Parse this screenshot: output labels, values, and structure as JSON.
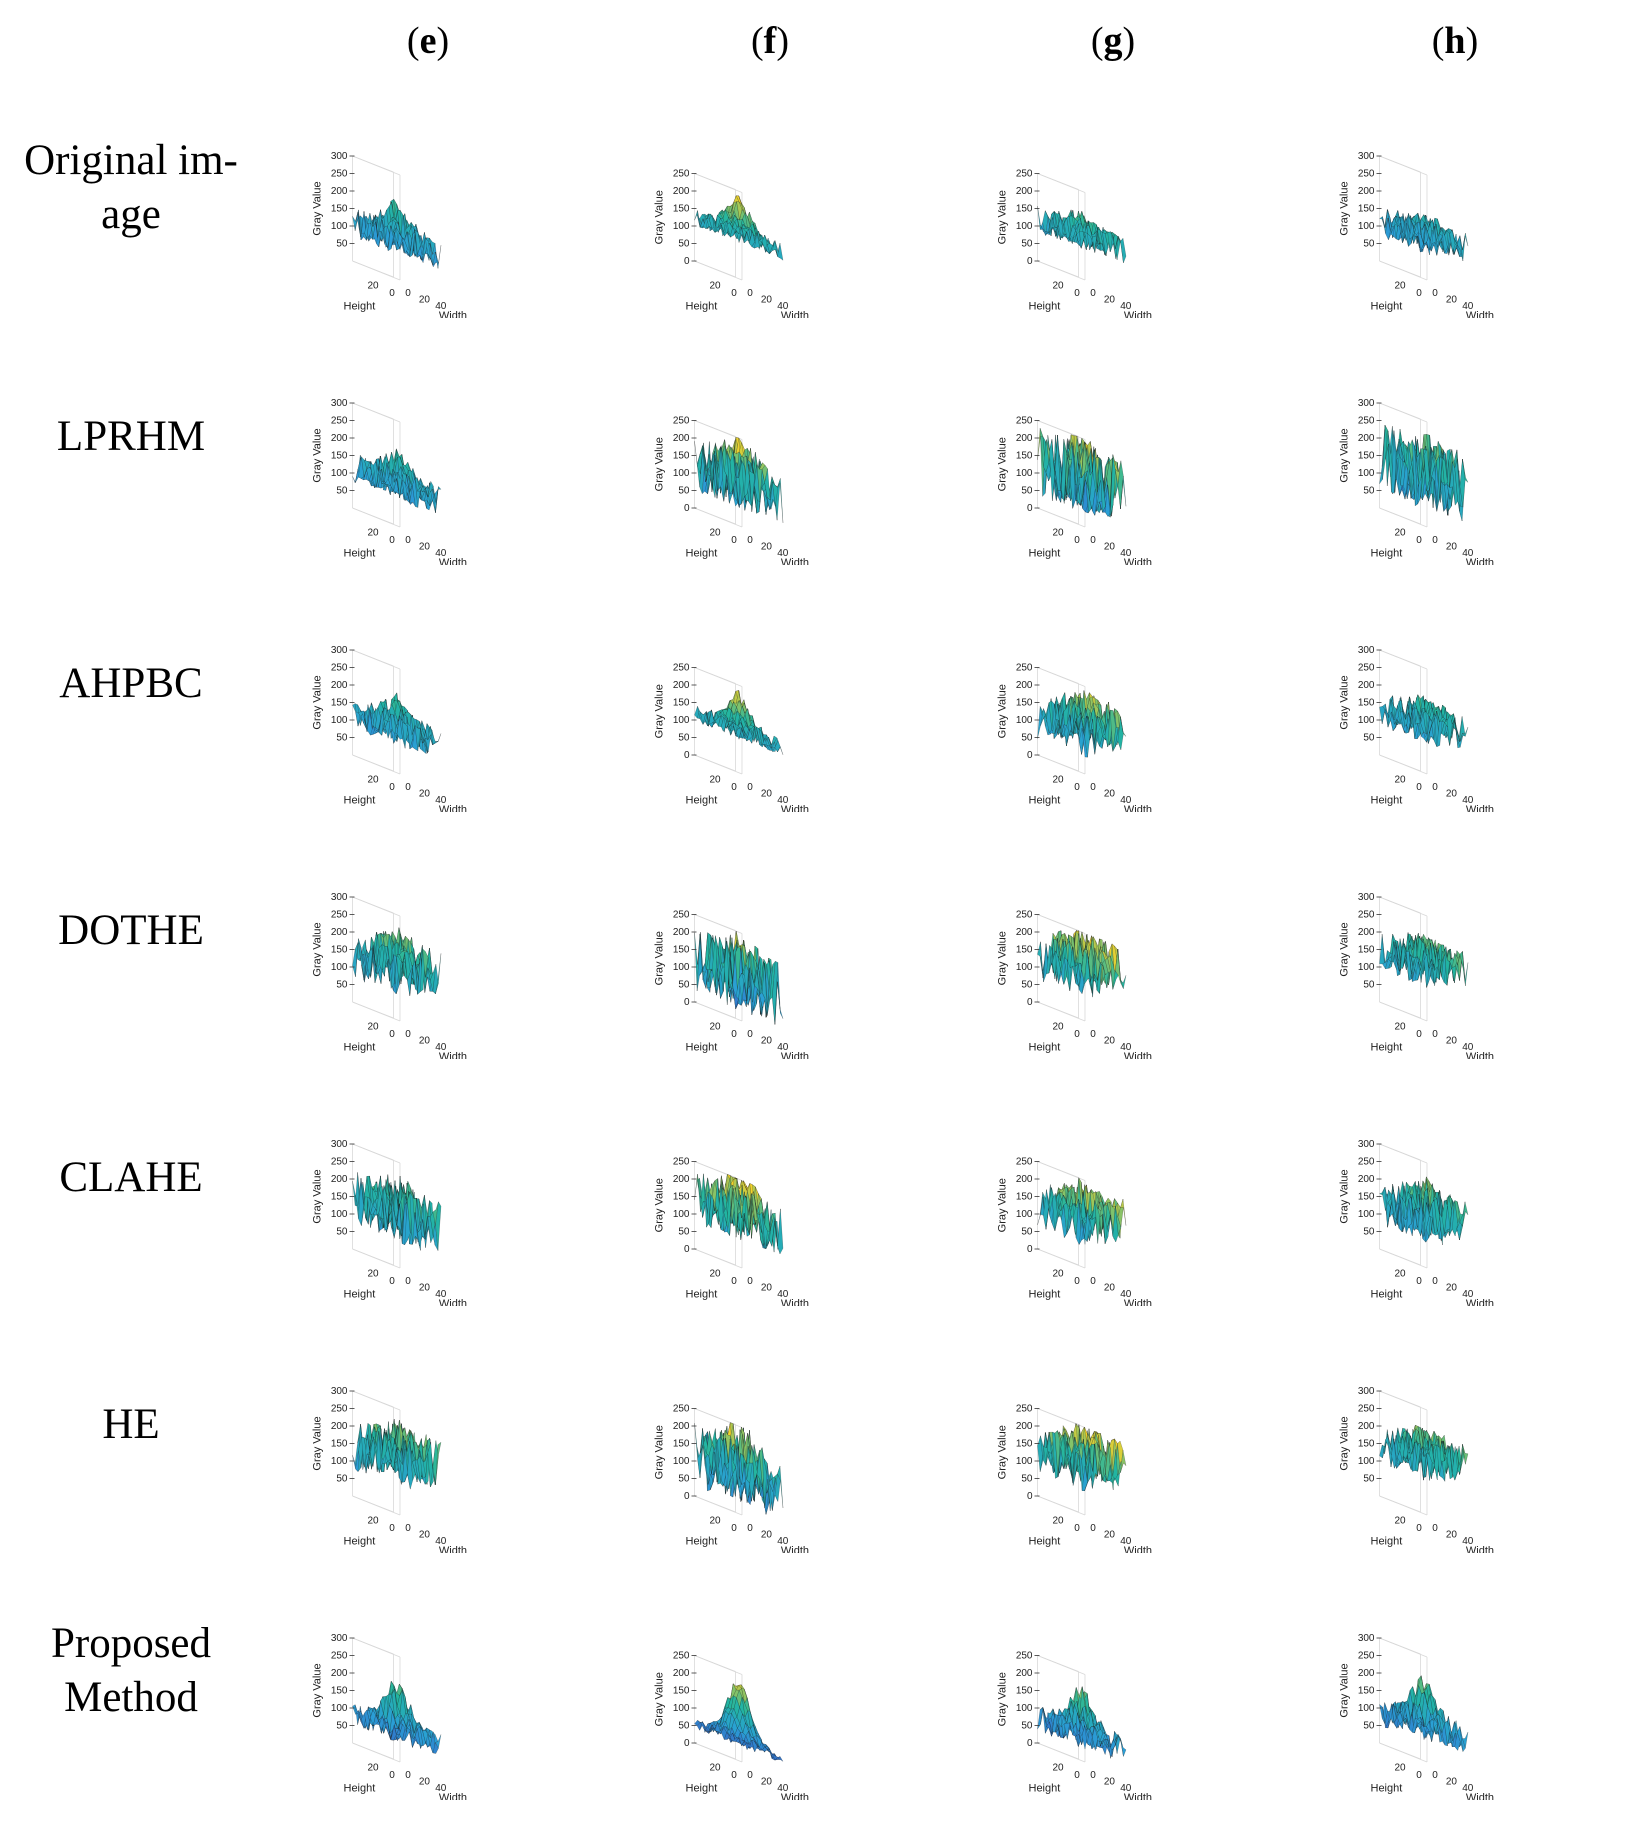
{
  "column_headers": [
    {
      "open": "(",
      "letter": "e",
      "close": ")"
    },
    {
      "open": "(",
      "letter": "f",
      "close": ")"
    },
    {
      "open": "(",
      "letter": "g",
      "close": ")"
    },
    {
      "open": "(",
      "letter": "h",
      "close": ")"
    }
  ],
  "row_labels": [
    [
      "Original im-",
      "age"
    ],
    [
      "LPRHM"
    ],
    [
      "AHPBC"
    ],
    [
      "DOTHE"
    ],
    [
      "CLAHE"
    ],
    [
      "HE"
    ],
    [
      "Proposed",
      "Method"
    ]
  ],
  "colors": {
    "low": "#3b3fb8",
    "mid": "#2a9fd6",
    "teal": "#22b5a0",
    "high": "#f3d22b",
    "edge": "#1a1a1a"
  },
  "chart_data": {
    "type": "surface3d",
    "description_axes": {
      "xlabel": "Width",
      "ylabel": "Height",
      "zlabel": "Gray Value"
    },
    "axes": {
      "xlabel": "Width",
      "ylabel": "Height",
      "zlabel": "Gray Value",
      "x_ticks": [
        "0",
        "20",
        "40"
      ],
      "y_ticks": [
        "20",
        "0"
      ],
      "zticks_300": [
        "300",
        "250",
        "200",
        "150",
        "100",
        "50"
      ],
      "zticks_250": [
        "250",
        "200",
        "150",
        "100",
        "50",
        "0"
      ]
    },
    "columns": [
      "e",
      "f",
      "g",
      "h"
    ],
    "rows": [
      "Original image",
      "LPRHM",
      "AHPBC",
      "DOTHE",
      "CLAHE",
      "HE",
      "Proposed Method"
    ],
    "plots": [
      {
        "row": 0,
        "col": 0,
        "zmax": 300,
        "base": 115,
        "amp": 45,
        "peak": 70,
        "tilt": 10
      },
      {
        "row": 0,
        "col": 1,
        "zmax": 250,
        "base": 125,
        "amp": 25,
        "peak": 95,
        "tilt": 0
      },
      {
        "row": 0,
        "col": 2,
        "zmax": 250,
        "base": 125,
        "amp": 40,
        "peak": 40,
        "tilt": 10
      },
      {
        "row": 0,
        "col": 3,
        "zmax": 300,
        "base": 125,
        "amp": 45,
        "peak": 25,
        "tilt": 25
      },
      {
        "row": 1,
        "col": 0,
        "zmax": 300,
        "base": 120,
        "amp": 45,
        "peak": 60,
        "tilt": 10
      },
      {
        "row": 1,
        "col": 1,
        "zmax": 250,
        "base": 130,
        "amp": 85,
        "peak": 60,
        "tilt": 0
      },
      {
        "row": 1,
        "col": 2,
        "zmax": 250,
        "base": 140,
        "amp": 105,
        "peak": 20,
        "tilt": 0
      },
      {
        "row": 1,
        "col": 3,
        "zmax": 300,
        "base": 150,
        "amp": 100,
        "peak": 20,
        "tilt": 10
      },
      {
        "row": 2,
        "col": 0,
        "zmax": 300,
        "base": 125,
        "amp": 45,
        "peak": 60,
        "tilt": 10
      },
      {
        "row": 2,
        "col": 1,
        "zmax": 250,
        "base": 120,
        "amp": 25,
        "peak": 90,
        "tilt": 0
      },
      {
        "row": 2,
        "col": 2,
        "zmax": 250,
        "base": 140,
        "amp": 65,
        "peak": 40,
        "tilt": 60
      },
      {
        "row": 2,
        "col": 3,
        "zmax": 300,
        "base": 145,
        "amp": 50,
        "peak": 30,
        "tilt": 45
      },
      {
        "row": 3,
        "col": 0,
        "zmax": 300,
        "base": 160,
        "amp": 70,
        "peak": 40,
        "tilt": 50
      },
      {
        "row": 3,
        "col": 1,
        "zmax": 250,
        "base": 120,
        "amp": 95,
        "peak": 80,
        "tilt": 0
      },
      {
        "row": 3,
        "col": 2,
        "zmax": 250,
        "base": 160,
        "amp": 70,
        "peak": 40,
        "tilt": 60
      },
      {
        "row": 3,
        "col": 3,
        "zmax": 300,
        "base": 170,
        "amp": 55,
        "peak": 30,
        "tilt": 50
      },
      {
        "row": 4,
        "col": 0,
        "zmax": 300,
        "base": 150,
        "amp": 80,
        "peak": 50,
        "tilt": 10
      },
      {
        "row": 4,
        "col": 1,
        "zmax": 250,
        "base": 150,
        "amp": 75,
        "peak": 70,
        "tilt": 0
      },
      {
        "row": 4,
        "col": 2,
        "zmax": 250,
        "base": 150,
        "amp": 65,
        "peak": 40,
        "tilt": 50
      },
      {
        "row": 4,
        "col": 3,
        "zmax": 300,
        "base": 150,
        "amp": 70,
        "peak": 40,
        "tilt": 40
      },
      {
        "row": 5,
        "col": 0,
        "zmax": 300,
        "base": 165,
        "amp": 70,
        "peak": 40,
        "tilt": 50
      },
      {
        "row": 5,
        "col": 1,
        "zmax": 250,
        "base": 120,
        "amp": 95,
        "peak": 80,
        "tilt": 0
      },
      {
        "row": 5,
        "col": 2,
        "zmax": 250,
        "base": 160,
        "amp": 70,
        "peak": 40,
        "tilt": 60
      },
      {
        "row": 5,
        "col": 3,
        "zmax": 300,
        "base": 170,
        "amp": 55,
        "peak": 30,
        "tilt": 50
      },
      {
        "row": 6,
        "col": 0,
        "zmax": 300,
        "base": 85,
        "amp": 35,
        "peak": 120,
        "tilt": 10
      },
      {
        "row": 6,
        "col": 1,
        "zmax": 250,
        "base": 55,
        "amp": 15,
        "peak": 165,
        "tilt": 0
      },
      {
        "row": 6,
        "col": 2,
        "zmax": 250,
        "base": 75,
        "amp": 40,
        "peak": 110,
        "tilt": 10
      },
      {
        "row": 6,
        "col": 3,
        "zmax": 300,
        "base": 100,
        "amp": 40,
        "peak": 110,
        "tilt": 20
      }
    ]
  }
}
